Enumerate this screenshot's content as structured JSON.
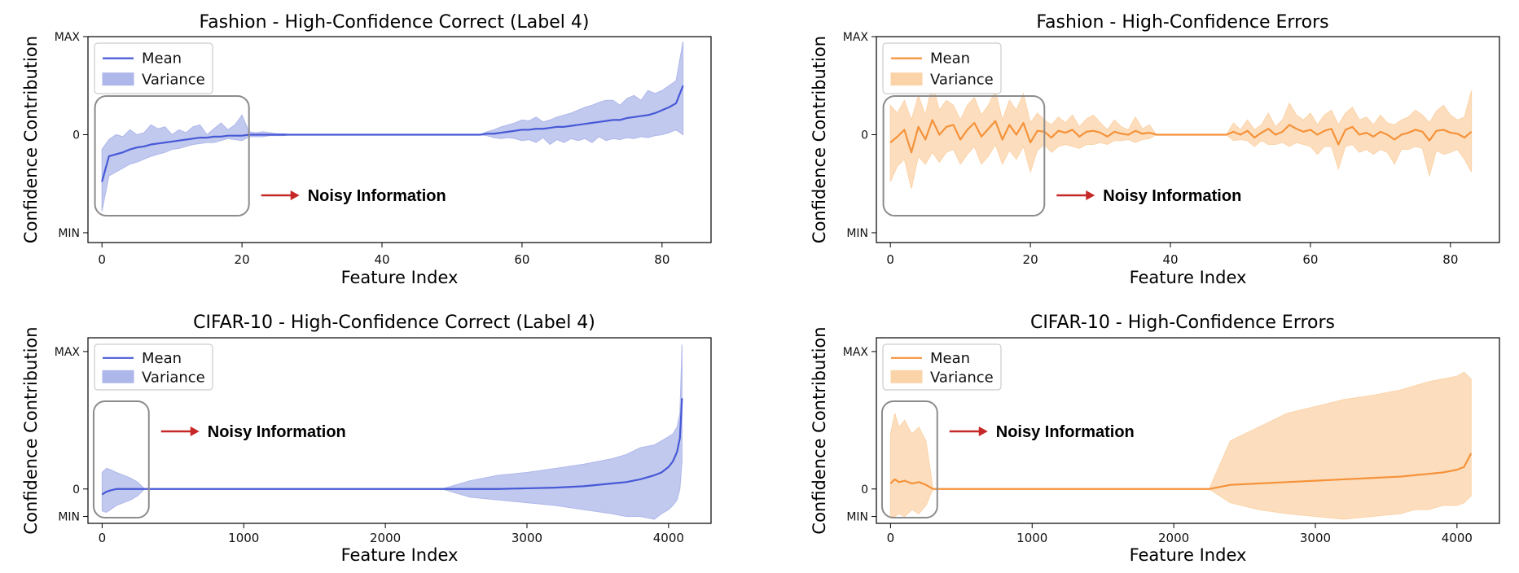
{
  "chart_data": [
    {
      "type": "area",
      "id": "fashion-correct",
      "title": "Fashion - High-Confidence Correct  (Label 4)",
      "xlabel": "Feature Index",
      "ylabel": "Confidence Contribution",
      "xlim": [
        -2,
        87
      ],
      "ylim": [
        -1.1,
        1.0
      ],
      "xticks": [
        0,
        20,
        40,
        60,
        80
      ],
      "xtick_labels": [
        "0",
        "20",
        "40",
        "60",
        "80"
      ],
      "yticks": [
        -1,
        0,
        1
      ],
      "ytick_labels": [
        "MIN",
        "0",
        "MAX"
      ],
      "color": "#4759d6",
      "band_color": "#aeb7ea",
      "legend": {
        "position": "top-left",
        "entries": [
          "Mean",
          "Variance"
        ]
      },
      "series": [
        {
          "name": "Mean",
          "x_start": 0,
          "values": [
            -0.48,
            -0.22,
            -0.2,
            -0.18,
            -0.15,
            -0.13,
            -0.12,
            -0.1,
            -0.09,
            -0.08,
            -0.07,
            -0.06,
            -0.05,
            -0.04,
            -0.03,
            -0.03,
            -0.02,
            -0.02,
            -0.01,
            -0.01,
            -0.01,
            0,
            0,
            0,
            0,
            0,
            0,
            0,
            0,
            0,
            0,
            0,
            0,
            0,
            0,
            0,
            0,
            0,
            0,
            0,
            0,
            0,
            0,
            0,
            0,
            0,
            0,
            0,
            0,
            0,
            0,
            0,
            0,
            0,
            0,
            0.01,
            0.01,
            0.02,
            0.03,
            0.04,
            0.05,
            0.05,
            0.06,
            0.06,
            0.07,
            0.08,
            0.08,
            0.09,
            0.1,
            0.11,
            0.12,
            0.13,
            0.14,
            0.15,
            0.15,
            0.17,
            0.18,
            0.19,
            0.2,
            0.22,
            0.25,
            0.28,
            0.32,
            0.5
          ]
        },
        {
          "name": "Variance",
          "x_start": 0,
          "upper": [
            -0.15,
            -0.05,
            0.0,
            -0.02,
            0.05,
            0.0,
            0.02,
            0.1,
            0.06,
            0.08,
            0.0,
            0.05,
            0.02,
            0.08,
            0.1,
            0.0,
            0.06,
            0.12,
            0.05,
            0.1,
            0.2,
            0.03,
            0.02,
            0.03,
            0.02,
            0.01,
            0.01,
            0.0,
            0.0,
            0.0,
            0.0,
            0.0,
            0.0,
            0.0,
            0.0,
            0.0,
            0.0,
            0.0,
            0.0,
            0.0,
            0.0,
            0.0,
            0.0,
            0.0,
            0.0,
            0.0,
            0.0,
            0.0,
            0.0,
            0.0,
            0.0,
            0.0,
            0.0,
            0.0,
            0.0,
            0.03,
            0.05,
            0.08,
            0.1,
            0.12,
            0.15,
            0.14,
            0.18,
            0.13,
            0.15,
            0.18,
            0.2,
            0.22,
            0.25,
            0.28,
            0.3,
            0.33,
            0.35,
            0.35,
            0.3,
            0.37,
            0.4,
            0.35,
            0.45,
            0.42,
            0.45,
            0.5,
            0.55,
            0.95
          ],
          "lower": [
            -0.78,
            -0.42,
            -0.38,
            -0.34,
            -0.3,
            -0.28,
            -0.25,
            -0.22,
            -0.2,
            -0.18,
            -0.15,
            -0.14,
            -0.12,
            -0.1,
            -0.09,
            -0.08,
            -0.08,
            -0.06,
            -0.04,
            -0.05,
            -0.06,
            -0.02,
            -0.02,
            -0.02,
            -0.01,
            -0.01,
            -0.01,
            0.0,
            0.0,
            0.0,
            0.0,
            0.0,
            0.0,
            0.0,
            0.0,
            0.0,
            0.0,
            0.0,
            0.0,
            0.0,
            0.0,
            0.0,
            0.0,
            0.0,
            0.0,
            0.0,
            0.0,
            0.0,
            0.0,
            0.0,
            0.0,
            0.0,
            0.0,
            0.0,
            0.0,
            -0.01,
            -0.03,
            -0.04,
            -0.03,
            -0.04,
            -0.06,
            -0.05,
            -0.08,
            -0.03,
            -0.1,
            -0.05,
            -0.08,
            -0.04,
            -0.06,
            -0.04,
            -0.08,
            -0.02,
            -0.06,
            -0.04,
            -0.05,
            -0.03,
            -0.04,
            -0.02,
            -0.03,
            -0.01,
            0.0,
            0.02,
            0.05,
            0.0
          ]
        }
      ],
      "annotation": {
        "text": "Noisy Information",
        "region_x": [
          -1,
          21
        ]
      }
    },
    {
      "type": "area",
      "id": "fashion-errors",
      "title": "Fashion - High-Confidence Errors",
      "xlabel": "Feature Index",
      "ylabel": "Confidence Contribution",
      "xlim": [
        -2,
        87
      ],
      "ylim": [
        -1.1,
        1.0
      ],
      "xticks": [
        0,
        20,
        40,
        60,
        80
      ],
      "xtick_labels": [
        "0",
        "20",
        "40",
        "60",
        "80"
      ],
      "yticks": [
        -1,
        0,
        1
      ],
      "ytick_labels": [
        "MIN",
        "0",
        "MAX"
      ],
      "color": "#f5923a",
      "band_color": "#fbd3a8",
      "legend": {
        "position": "top-left",
        "entries": [
          "Mean",
          "Variance"
        ]
      },
      "series": [
        {
          "name": "Mean",
          "x_start": 0,
          "values": [
            -0.08,
            -0.02,
            0.05,
            -0.18,
            0.08,
            -0.05,
            0.15,
            0.0,
            0.08,
            0.1,
            -0.05,
            0.05,
            0.12,
            -0.02,
            0.06,
            0.14,
            -0.05,
            0.1,
            0.0,
            0.12,
            -0.08,
            0.04,
            0.03,
            -0.03,
            0.04,
            0.02,
            0.05,
            -0.02,
            0.03,
            0.04,
            0.02,
            -0.02,
            0.03,
            0.01,
            0.0,
            0.04,
            0.01,
            0.02,
            0.0,
            0.0,
            0.0,
            0.0,
            0.0,
            0.0,
            0.0,
            0.0,
            0.0,
            0.0,
            0.0,
            0.03,
            0.0,
            0.04,
            -0.03,
            0.02,
            0.06,
            0.0,
            0.03,
            0.1,
            0.06,
            0.03,
            0.05,
            0.0,
            0.04,
            0.06,
            -0.1,
            0.05,
            0.08,
            0.0,
            0.02,
            -0.02,
            0.03,
            0.0,
            -0.05,
            0.0,
            0.02,
            0.05,
            0.03,
            -0.06,
            0.04,
            0.05,
            0.02,
            0.01,
            -0.03,
            0.03
          ]
        },
        {
          "name": "Variance",
          "x_start": 0,
          "upper": [
            0.3,
            0.22,
            0.35,
            0.15,
            0.4,
            0.2,
            0.52,
            0.25,
            0.35,
            0.3,
            0.15,
            0.3,
            0.38,
            0.2,
            0.3,
            0.45,
            0.15,
            0.35,
            0.25,
            0.42,
            0.12,
            0.22,
            0.15,
            0.1,
            0.18,
            0.12,
            0.2,
            0.08,
            0.16,
            0.2,
            0.12,
            0.05,
            0.15,
            0.08,
            0.05,
            0.18,
            0.06,
            0.1,
            0.0,
            0.0,
            0.0,
            0.0,
            0.0,
            0.0,
            0.0,
            0.0,
            0.0,
            0.0,
            0.0,
            0.12,
            0.05,
            0.15,
            0.05,
            0.1,
            0.22,
            0.08,
            0.15,
            0.32,
            0.2,
            0.15,
            0.22,
            0.1,
            0.2,
            0.25,
            0.1,
            0.22,
            0.28,
            0.15,
            0.18,
            0.1,
            0.2,
            0.12,
            0.1,
            0.15,
            0.18,
            0.25,
            0.2,
            0.12,
            0.24,
            0.3,
            0.2,
            0.15,
            0.18,
            0.45
          ],
          "lower": [
            -0.48,
            -0.32,
            -0.25,
            -0.55,
            -0.22,
            -0.3,
            -0.18,
            -0.28,
            -0.18,
            -0.15,
            -0.3,
            -0.2,
            -0.12,
            -0.3,
            -0.22,
            -0.1,
            -0.3,
            -0.16,
            -0.25,
            -0.12,
            -0.38,
            -0.16,
            -0.1,
            -0.18,
            -0.12,
            -0.1,
            -0.12,
            -0.14,
            -0.1,
            -0.1,
            -0.08,
            -0.1,
            -0.06,
            -0.06,
            -0.05,
            -0.08,
            -0.05,
            -0.04,
            0.0,
            0.0,
            0.0,
            0.0,
            0.0,
            0.0,
            0.0,
            0.0,
            0.0,
            0.0,
            0.0,
            -0.06,
            -0.05,
            -0.06,
            -0.12,
            -0.06,
            -0.1,
            -0.1,
            -0.08,
            -0.12,
            -0.08,
            -0.1,
            -0.12,
            -0.2,
            -0.12,
            -0.12,
            -0.35,
            -0.12,
            -0.1,
            -0.18,
            -0.15,
            -0.2,
            -0.15,
            -0.18,
            -0.3,
            -0.15,
            -0.15,
            -0.12,
            -0.14,
            -0.42,
            -0.16,
            -0.2,
            -0.18,
            -0.15,
            -0.25,
            -0.38
          ]
        }
      ],
      "annotation": {
        "text": "Noisy Information",
        "region_x": [
          -1,
          22
        ]
      }
    },
    {
      "type": "area",
      "id": "cifar-correct",
      "title": "CIFAR-10 - High-Confidence Correct  (Label 4)",
      "xlabel": "Feature Index",
      "ylabel": "Confidence Contribution",
      "xlim": [
        -100,
        4300
      ],
      "ylim": [
        -0.25,
        1.1
      ],
      "xticks": [
        0,
        1000,
        2000,
        3000,
        4000
      ],
      "xtick_labels": [
        "0",
        "1000",
        "2000",
        "3000",
        "4000"
      ],
      "yticks": [
        -0.2,
        0,
        1
      ],
      "ytick_labels": [
        "MIN",
        "0",
        "MAX"
      ],
      "color": "#4759d6",
      "band_color": "#aeb7ea",
      "legend": {
        "position": "top-left",
        "entries": [
          "Mean",
          "Variance"
        ]
      },
      "series": [
        {
          "name": "Mean",
          "x": [
            0,
            30,
            60,
            100,
            150,
            200,
            250,
            300,
            2400,
            2600,
            2800,
            3000,
            3200,
            3400,
            3600,
            3700,
            3800,
            3900,
            3950,
            4000,
            4030,
            4060,
            4080,
            4095
          ],
          "values": [
            -0.04,
            -0.02,
            -0.01,
            0,
            0,
            0,
            0,
            0,
            0,
            0,
            0,
            0.005,
            0.01,
            0.02,
            0.04,
            0.05,
            0.07,
            0.1,
            0.12,
            0.16,
            0.2,
            0.27,
            0.37,
            0.66
          ]
        },
        {
          "name": "Variance",
          "x": [
            0,
            30,
            60,
            100,
            150,
            200,
            250,
            300,
            2400,
            2600,
            2800,
            3000,
            3200,
            3400,
            3600,
            3700,
            3800,
            3900,
            3950,
            4000,
            4030,
            4060,
            4080,
            4095
          ],
          "upper": [
            0.12,
            0.15,
            0.14,
            0.12,
            0.1,
            0.08,
            0.05,
            0.0,
            0.0,
            0.06,
            0.1,
            0.12,
            0.15,
            0.18,
            0.22,
            0.25,
            0.3,
            0.32,
            0.35,
            0.38,
            0.4,
            0.45,
            0.55,
            1.05
          ],
          "lower": [
            -0.16,
            -0.17,
            -0.15,
            -0.12,
            -0.1,
            -0.08,
            -0.05,
            0.0,
            0.0,
            -0.06,
            -0.08,
            -0.1,
            -0.12,
            -0.15,
            -0.18,
            -0.2,
            -0.2,
            -0.22,
            -0.18,
            -0.15,
            -0.12,
            -0.08,
            0.0,
            0.2
          ]
        }
      ],
      "annotation": {
        "text": "Noisy  Information",
        "region_x": [
          -60,
          330
        ]
      }
    },
    {
      "type": "area",
      "id": "cifar-errors",
      "title": "CIFAR-10 - High-Confidence Errors",
      "xlabel": "Feature Index",
      "ylabel": "Confidence Contribution",
      "xlim": [
        -100,
        4300
      ],
      "ylim": [
        -0.25,
        1.1
      ],
      "xticks": [
        0,
        1000,
        2000,
        3000,
        4000
      ],
      "xtick_labels": [
        "0",
        "1000",
        "2000",
        "3000",
        "4000"
      ],
      "yticks": [
        -0.2,
        0,
        1
      ],
      "ytick_labels": [
        "MIN",
        "0",
        "MAX"
      ],
      "color": "#f5923a",
      "band_color": "#fbd3a8",
      "legend": {
        "position": "top-left",
        "entries": [
          "Mean",
          "Variance"
        ]
      },
      "series": [
        {
          "name": "Mean",
          "x": [
            0,
            30,
            60,
            100,
            150,
            200,
            250,
            300,
            2250,
            2400,
            2600,
            2800,
            3000,
            3200,
            3400,
            3600,
            3700,
            3800,
            3900,
            4000,
            4050,
            4100
          ],
          "values": [
            0.04,
            0.07,
            0.05,
            0.06,
            0.04,
            0.05,
            0.03,
            0,
            0,
            0.03,
            0.04,
            0.05,
            0.06,
            0.07,
            0.08,
            0.09,
            0.1,
            0.11,
            0.12,
            0.14,
            0.16,
            0.26
          ]
        },
        {
          "name": "Variance",
          "x": [
            0,
            30,
            60,
            100,
            150,
            200,
            250,
            300,
            2250,
            2400,
            2600,
            2800,
            3000,
            3200,
            3400,
            3600,
            3700,
            3800,
            3900,
            4000,
            4050,
            4100
          ],
          "upper": [
            0.4,
            0.55,
            0.45,
            0.5,
            0.4,
            0.45,
            0.35,
            0.0,
            0.0,
            0.35,
            0.45,
            0.55,
            0.6,
            0.65,
            0.68,
            0.72,
            0.75,
            0.78,
            0.8,
            0.82,
            0.85,
            0.8
          ],
          "lower": [
            -0.2,
            -0.2,
            -0.18,
            -0.2,
            -0.15,
            -0.18,
            -0.12,
            0.0,
            0.0,
            -0.1,
            -0.15,
            -0.18,
            -0.2,
            -0.22,
            -0.2,
            -0.18,
            -0.15,
            -0.15,
            -0.12,
            -0.12,
            -0.1,
            -0.05
          ]
        }
      ],
      "annotation": {
        "text": "Noisy Information",
        "region_x": [
          -60,
          330
        ]
      }
    }
  ]
}
